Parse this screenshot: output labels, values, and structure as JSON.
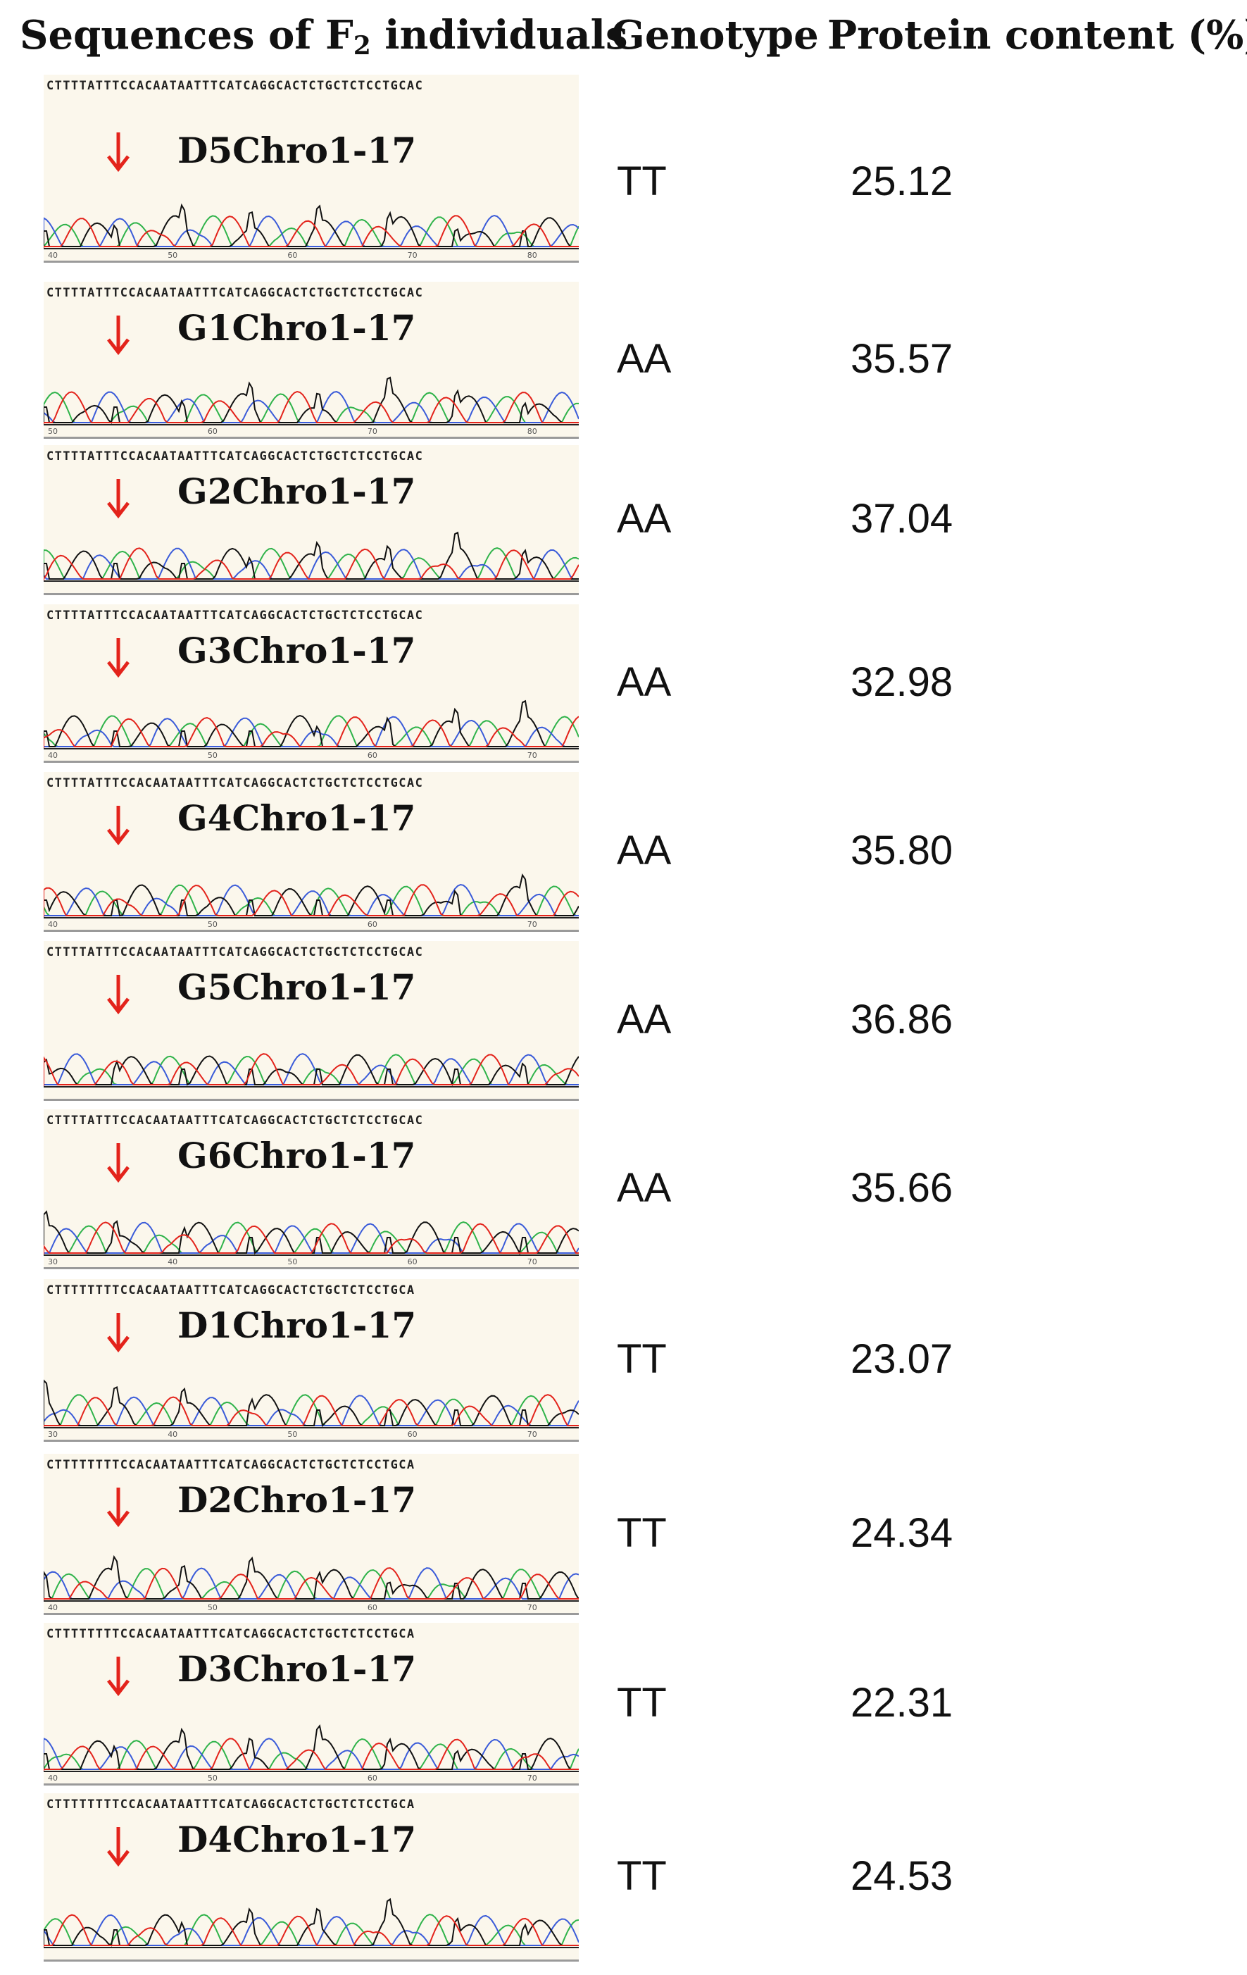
{
  "header": {
    "seq_label": "Sequences of F",
    "seq_sub": "2",
    "seq_label_end": " individuals",
    "genotype_label": "Genotype",
    "protein_label": "Protein content (%)"
  },
  "rows": [
    {
      "sample": "D5Chro1-17",
      "sequence": "CTTTTATTTCCACAATAATTTCATCAGGCACTCTGCTCTCCTGCAC",
      "genotype": "TT",
      "protein": "25.12",
      "ticks": [
        "40",
        "50",
        "60",
        "70",
        "80"
      ]
    },
    {
      "sample": "G1Chro1-17",
      "sequence": "CTTTTATTTCCACAATAATTTCATCAGGCACTCTGCTCTCCTGCAC",
      "genotype": "AA",
      "protein": "35.57",
      "ticks": [
        "50",
        "60",
        "70",
        "80"
      ]
    },
    {
      "sample": "G2Chro1-17",
      "sequence": "CTTTTATTTCCACAATAATTTCATCAGGCACTCTGCTCTCCTGCAC",
      "genotype": "AA",
      "protein": "37.04",
      "ticks": []
    },
    {
      "sample": "G3Chro1-17",
      "sequence": "CTTTTATTTCCACAATAATTTCATCAGGCACTCTGCTCTCCTGCAC",
      "genotype": "AA",
      "protein": "32.98",
      "ticks": [
        "40",
        "50",
        "60",
        "70"
      ]
    },
    {
      "sample": "G4Chro1-17",
      "sequence": "CTTTTATTTCCACAATAATTTCATCAGGCACTCTGCTCTCCTGCAC",
      "genotype": "AA",
      "protein": "35.80",
      "ticks": [
        "40",
        "50",
        "60",
        "70"
      ]
    },
    {
      "sample": "G5Chro1-17",
      "sequence": "CTTTTATTTCCACAATAATTTCATCAGGCACTCTGCTCTCCTGCAC",
      "genotype": "AA",
      "protein": "36.86",
      "ticks": []
    },
    {
      "sample": "G6Chro1-17",
      "sequence": "CTTTTATTTCCACAATAATTTCATCAGGCACTCTGCTCTCCTGCAC",
      "genotype": "AA",
      "protein": "35.66",
      "ticks": [
        "30",
        "40",
        "50",
        "60",
        "70"
      ]
    },
    {
      "sample": "D1Chro1-17",
      "sequence": "CTTTTTTTTCCACAATAATTTCATCAGGCACTCTGCTCTCCTGCA",
      "genotype": "TT",
      "protein": "23.07",
      "ticks": [
        "30",
        "40",
        "50",
        "60",
        "70"
      ]
    },
    {
      "sample": "D2Chro1-17",
      "sequence": "CTTTTTTTTCCACAATAATTTCATCAGGCACTCTGCTCTCCTGCA",
      "genotype": "TT",
      "protein": "24.34",
      "ticks": [
        "40",
        "50",
        "60",
        "70"
      ]
    },
    {
      "sample": "D3Chro1-17",
      "sequence": "CTTTTTTTTCCACAATAATTTCATCAGGCACTCTGCTCTCCTGCA",
      "genotype": "TT",
      "protein": "22.31",
      "ticks": [
        "40",
        "50",
        "60",
        "70"
      ]
    },
    {
      "sample": "D4Chro1-17",
      "sequence": "CTTTTTTTTCCACAATAATTTCATCAGGCACTCTGCTCTCCTGCA",
      "genotype": "TT",
      "protein": "24.53",
      "ticks": []
    }
  ],
  "colors": {
    "arrow": "#e3231b",
    "trace_a": "#2fb34a",
    "trace_c": "#3a5bd9",
    "trace_g": "#111111",
    "trace_t": "#e3231b"
  }
}
